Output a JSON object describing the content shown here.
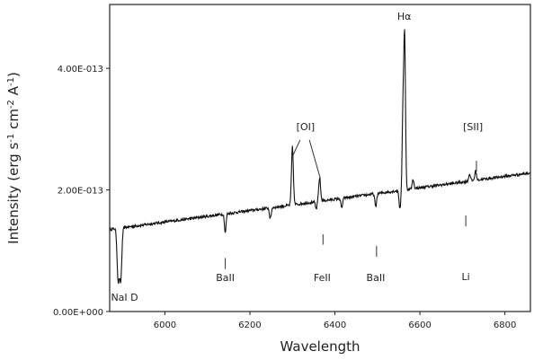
{
  "chart_data": {
    "type": "line",
    "title": "",
    "xlabel": "Wavelength",
    "ylabel": "Intensity (erg s",
    "ylabel_parts": [
      {
        "text": "Intensity (erg s",
        "sup": false
      },
      {
        "text": "-1",
        "sup": true
      },
      {
        "text": " cm",
        "sup": false
      },
      {
        "text": "-2",
        "sup": true
      },
      {
        "text": " A",
        "sup": false
      },
      {
        "text": "-1",
        "sup": true
      },
      {
        "text": ")",
        "sup": false
      }
    ],
    "xlim": [
      5870,
      6860
    ],
    "ylim": [
      0,
      5.05e-13
    ],
    "x_ticks": [
      {
        "value": 6000,
        "label": "6000"
      },
      {
        "value": 6200,
        "label": "6200"
      },
      {
        "value": 6400,
        "label": "6400"
      },
      {
        "value": 6600,
        "label": "6600"
      },
      {
        "value": 6800,
        "label": "6800"
      }
    ],
    "y_ticks": [
      {
        "value": 0,
        "label": "0.00E+000"
      },
      {
        "value": 2e-13,
        "label": "2.00E-013"
      },
      {
        "value": 4e-13,
        "label": "4.00E-013"
      }
    ],
    "grid": false,
    "line_color": "#111111",
    "series": [
      {
        "baseline": [
          [
            5870,
            1.35e-13
          ],
          [
            6860,
            2.28e-13
          ]
        ],
        "features": [
          {
            "x": 5890,
            "depth": -8.5e-14,
            "width": 2.5
          },
          {
            "x": 5896,
            "depth": -8.5e-14,
            "width": 2.5
          },
          {
            "x": 6142,
            "depth": -3.2e-14,
            "width": 1.8
          },
          {
            "x": 6248,
            "depth": -1.8e-14,
            "width": 2
          },
          {
            "x": 6300,
            "depth": 9.5e-14,
            "width": 2.2
          },
          {
            "x": 6356,
            "depth": -1.2e-14,
            "width": 2
          },
          {
            "x": 6364,
            "depth": 3.8e-14,
            "width": 2.2
          },
          {
            "x": 6416,
            "depth": -1.6e-14,
            "width": 2
          },
          {
            "x": 6496,
            "depth": -2.2e-14,
            "width": 2
          },
          {
            "x": 6553,
            "depth": -3e-14,
            "width": 2
          },
          {
            "x": 6560,
            "depth": 1.2e-13,
            "width": 1.8
          },
          {
            "x": 6564,
            "depth": 2.55e-13,
            "width": 2.0
          },
          {
            "x": 6584,
            "depth": 1.5e-14,
            "width": 2
          },
          {
            "x": 6717,
            "depth": 1.2e-14,
            "width": 2
          },
          {
            "x": 6731,
            "depth": 1.5e-14,
            "width": 2
          }
        ]
      }
    ],
    "annotations": [
      {
        "text": "Hα",
        "x": 6563,
        "y": 4.8e-13,
        "anchor": "middle"
      },
      {
        "text": "[OI]",
        "x": 6331,
        "y": 2.98e-13,
        "anchor": "middle"
      },
      {
        "text": "[SII]",
        "x": 6725,
        "y": 2.98e-13,
        "anchor": "middle"
      },
      {
        "text": "BaII",
        "x": 6142,
        "y": 5e-14,
        "anchor": "middle"
      },
      {
        "text": "FeII",
        "x": 6370,
        "y": 5e-14,
        "anchor": "middle"
      },
      {
        "text": "BaII",
        "x": 6496,
        "y": 5e-14,
        "anchor": "middle"
      },
      {
        "text": "Li",
        "x": 6708,
        "y": 5.2e-14,
        "anchor": "middle"
      },
      {
        "text": "NaI D",
        "x": 5905,
        "y": 1.8e-14,
        "anchor": "middle"
      }
    ],
    "marker_lines": [
      {
        "x1": 6142,
        "y1": 7e-14,
        "x2": 6142,
        "y2": 8.8e-14
      },
      {
        "x1": 6372,
        "y1": 1.1e-13,
        "x2": 6372,
        "y2": 1.27e-13
      },
      {
        "x1": 6498,
        "y1": 9e-14,
        "x2": 6498,
        "y2": 1.08e-13
      },
      {
        "x1": 6708,
        "y1": 1.4e-13,
        "x2": 6708,
        "y2": 1.58e-13
      },
      {
        "x1": 6733,
        "y1": 2.3e-13,
        "x2": 6733,
        "y2": 2.48e-13
      },
      {
        "x1": 6318,
        "y1": 2.82e-13,
        "x2": 6302,
        "y2": 2.58e-13
      },
      {
        "x1": 6340,
        "y1": 2.82e-13,
        "x2": 6366,
        "y2": 2.18e-13
      }
    ]
  }
}
